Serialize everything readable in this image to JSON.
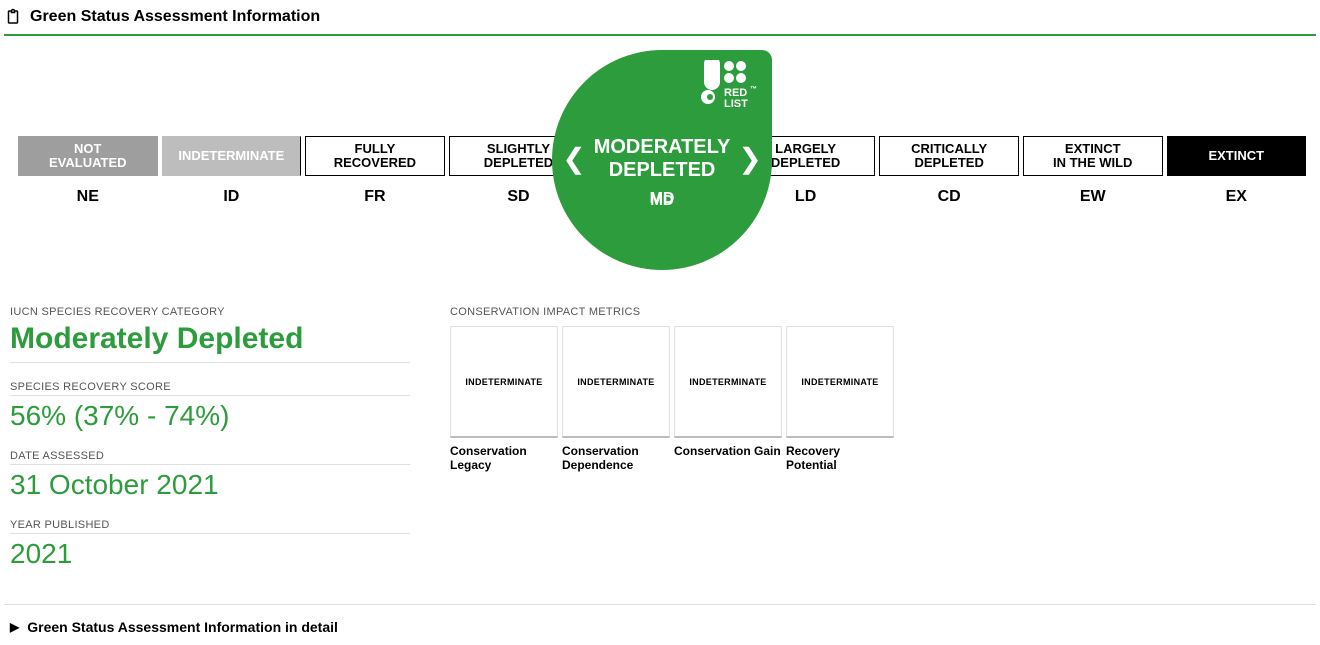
{
  "header": {
    "title": "Green Status Assessment Information"
  },
  "colors": {
    "accent": "#2d9c3c",
    "gray": "#9e9e9e",
    "ltgray": "#bdbdbd",
    "black": "#000000",
    "rule": "#e0e0e0"
  },
  "scale": {
    "active_index": 4,
    "items": [
      {
        "line1": "NOT",
        "line2": "EVALUATED",
        "code": "NE",
        "style": "gray"
      },
      {
        "line1": "INDETERMINATE",
        "line2": "",
        "code": "ID",
        "style": "ltgray"
      },
      {
        "line1": "FULLY",
        "line2": "RECOVERED",
        "code": "FR",
        "style": "white"
      },
      {
        "line1": "SLIGHTLY",
        "line2": "DEPLETED",
        "code": "SD",
        "style": "white"
      },
      {
        "line1": "MODERATELY",
        "line2": "DEPLETED",
        "code": "MD",
        "style": "active"
      },
      {
        "line1": "LARGELY",
        "line2": "DEPLETED",
        "code": "LD",
        "style": "white"
      },
      {
        "line1": "CRITICALLY",
        "line2": "DEPLETED",
        "code": "CD",
        "style": "white"
      },
      {
        "line1": "EXTINCT",
        "line2": "IN THE WILD",
        "code": "EW",
        "style": "white"
      },
      {
        "line1": "EXTINCT",
        "line2": "",
        "code": "EX",
        "style": "black"
      }
    ],
    "badge_brand_top": "RED",
    "badge_brand_bottom": "LIST"
  },
  "left_fields": {
    "category_label": "IUCN SPECIES RECOVERY CATEGORY",
    "category_value": "Moderately Depleted",
    "score_label": "SPECIES RECOVERY SCORE",
    "score_value": "56% (37% - 74%)",
    "date_label": "DATE ASSESSED",
    "date_value": "31 October 2021",
    "year_label": "YEAR PUBLISHED",
    "year_value": "2021"
  },
  "metrics": {
    "section_label": "CONSERVATION IMPACT METRICS",
    "cards": [
      {
        "status": "INDETERMINATE",
        "title": "Conservation Legacy"
      },
      {
        "status": "INDETERMINATE",
        "title": "Conservation Dependence"
      },
      {
        "status": "INDETERMINATE",
        "title": "Conservation Gain"
      },
      {
        "status": "INDETERMINATE",
        "title": "Recovery Potential"
      }
    ]
  },
  "detail_link": "Green Status Assessment Information in detail"
}
